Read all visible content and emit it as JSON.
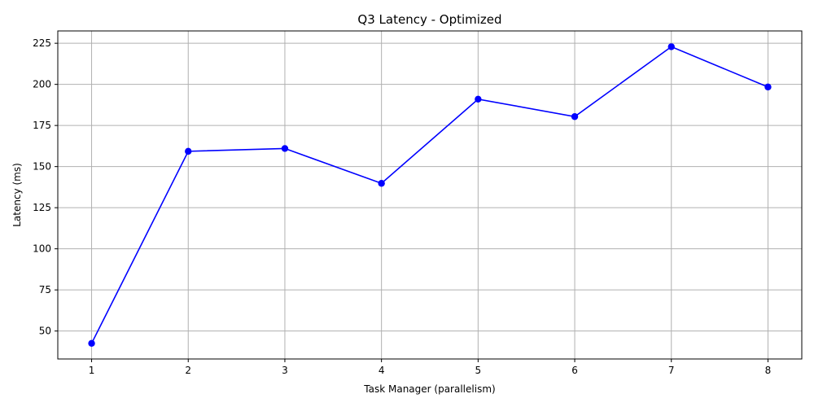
{
  "chart_data": {
    "type": "line",
    "title": "Q3 Latency - Optimized",
    "xlabel": "Task Manager (parallelism)",
    "ylabel": "Latency (ms)",
    "x": [
      1,
      2,
      3,
      4,
      5,
      6,
      7,
      8
    ],
    "series": [
      {
        "values": [
          42.5,
          159.3,
          161.0,
          139.8,
          191.0,
          180.4,
          222.9,
          198.4
        ],
        "color": "#0000ff",
        "marker": "circle"
      }
    ],
    "xticks": [
      "1",
      "2",
      "3",
      "4",
      "5",
      "6",
      "7",
      "8"
    ],
    "yticks": [
      "50",
      "75",
      "100",
      "125",
      "150",
      "175",
      "200",
      "225"
    ],
    "xlim": [
      0.65,
      8.35
    ],
    "ylim": [
      33,
      232.5
    ],
    "grid": true,
    "grid_color": "#b0b0b0"
  }
}
